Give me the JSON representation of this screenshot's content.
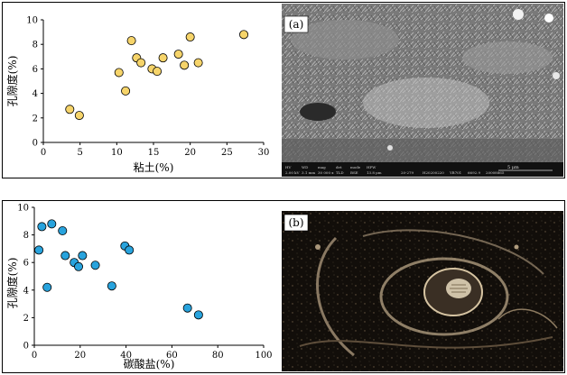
{
  "chart_data": [
    {
      "type": "scatter",
      "xlabel": "粘土(%)",
      "ylabel": "孔隙度(%)",
      "xlim": [
        0,
        30
      ],
      "ylim": [
        0,
        10
      ],
      "xticks": [
        "0",
        "5",
        "10",
        "15",
        "20",
        "25",
        "30"
      ],
      "yticks": [
        "0",
        "2",
        "4",
        "6",
        "8",
        "10"
      ],
      "grid": false,
      "point_color": "#f6d46a",
      "series": [
        {
          "points": [
            {
              "x": 3.6,
              "y": 2.7
            },
            {
              "x": 4.9,
              "y": 2.2
            },
            {
              "x": 10.3,
              "y": 5.7
            },
            {
              "x": 11.2,
              "y": 4.2
            },
            {
              "x": 12.0,
              "y": 8.3
            },
            {
              "x": 12.7,
              "y": 6.9
            },
            {
              "x": 13.3,
              "y": 6.5
            },
            {
              "x": 14.8,
              "y": 6.0
            },
            {
              "x": 15.5,
              "y": 5.8
            },
            {
              "x": 16.3,
              "y": 6.9
            },
            {
              "x": 18.4,
              "y": 7.2
            },
            {
              "x": 19.2,
              "y": 6.3
            },
            {
              "x": 20.0,
              "y": 8.6
            },
            {
              "x": 21.1,
              "y": 6.5
            },
            {
              "x": 27.3,
              "y": 8.8
            }
          ]
        }
      ]
    },
    {
      "type": "scatter",
      "xlabel": "碳酸盐(%)",
      "ylabel": "孔隙度(%)",
      "xlim": [
        0,
        100
      ],
      "ylim": [
        0,
        10
      ],
      "xticks": [
        "0",
        "20",
        "40",
        "60",
        "80",
        "100"
      ],
      "yticks": [
        "0",
        "2",
        "4",
        "6",
        "8",
        "10"
      ],
      "grid": false,
      "point_color": "#28a3dd",
      "series": [
        {
          "points": [
            {
              "x": 2.0,
              "y": 6.9
            },
            {
              "x": 3.3,
              "y": 8.6
            },
            {
              "x": 5.6,
              "y": 4.2
            },
            {
              "x": 7.6,
              "y": 8.8
            },
            {
              "x": 12.3,
              "y": 8.3
            },
            {
              "x": 13.5,
              "y": 6.5
            },
            {
              "x": 17.4,
              "y": 6.0
            },
            {
              "x": 19.3,
              "y": 5.7
            },
            {
              "x": 21.0,
              "y": 6.5
            },
            {
              "x": 26.6,
              "y": 5.8
            },
            {
              "x": 33.8,
              "y": 4.3
            },
            {
              "x": 39.5,
              "y": 7.2
            },
            {
              "x": 41.4,
              "y": 6.9
            },
            {
              "x": 66.8,
              "y": 2.7
            },
            {
              "x": 71.6,
              "y": 2.2
            }
          ]
        }
      ]
    }
  ],
  "photos": [
    {
      "label": "(a)",
      "scale_bar_text": "5 μm",
      "info_bar": [
        "HV",
        "WD",
        "mag",
        "det",
        "mode",
        "HFW",
        "2.00 kV",
        "3.1 mm",
        "30 000 x",
        "TLD",
        "BSE",
        "13.8 μm",
        "20-279",
        "H20200220",
        "YB701",
        "6692.9",
        "20008865"
      ]
    },
    {
      "label": "(b)"
    }
  ]
}
